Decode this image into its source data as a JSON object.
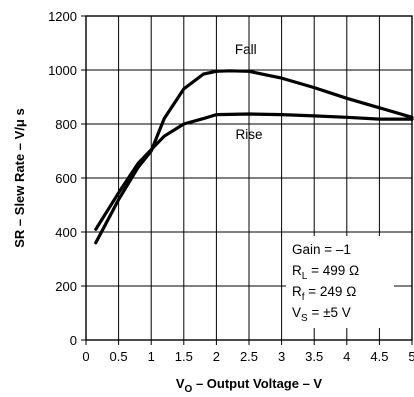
{
  "chart_data": {
    "type": "line",
    "xlabel": {
      "main": "V",
      "sub": "O",
      "rest": " – Output Voltage – V"
    },
    "ylabel": "SR – Slew Rate – V/μ s",
    "xlim": [
      0,
      5
    ],
    "ylim": [
      0,
      1200
    ],
    "x_ticks": [
      0,
      0.5,
      1,
      1.5,
      2,
      2.5,
      3,
      3.5,
      4,
      4.5,
      5
    ],
    "x_tick_labels": [
      "0",
      "0.5",
      "1",
      "1.5",
      "2",
      "2.5",
      "3",
      "3.5",
      "4",
      "4.5",
      "5"
    ],
    "y_ticks": [
      0,
      200,
      400,
      600,
      800,
      1000,
      1200
    ],
    "y_tick_labels": [
      "0",
      "200",
      "400",
      "600",
      "800",
      "1000",
      "1200"
    ],
    "grid": true,
    "series": [
      {
        "name": "Fall",
        "x": [
          0.15,
          0.5,
          0.8,
          1.0,
          1.2,
          1.5,
          1.8,
          2.0,
          2.2,
          2.5,
          2.8,
          3.0,
          3.5,
          4.0,
          4.5,
          5.0
        ],
        "y": [
          360,
          520,
          640,
          700,
          820,
          930,
          985,
          995,
          997,
          995,
          980,
          970,
          935,
          895,
          860,
          825
        ]
      },
      {
        "name": "Rise",
        "x": [
          0.15,
          0.5,
          0.8,
          1.0,
          1.2,
          1.5,
          1.8,
          2.0,
          2.5,
          3.0,
          3.5,
          4.0,
          4.5,
          5.0
        ],
        "y": [
          410,
          545,
          655,
          705,
          755,
          800,
          820,
          835,
          837,
          835,
          830,
          825,
          818,
          818
        ]
      }
    ],
    "annotations": [
      {
        "label": "Fall",
        "x": 2.45,
        "y": 1060
      },
      {
        "label": "Rise",
        "x": 2.5,
        "y": 745
      }
    ],
    "conditions": [
      {
        "main": "Gain = –1",
        "sub": "",
        "rest": ""
      },
      {
        "main": "R",
        "sub": "L",
        "rest": " = 499 Ω"
      },
      {
        "main": "R",
        "sub": "f",
        "rest": " = 249 Ω"
      },
      {
        "main": "V",
        "sub": "S",
        "rest": " = ±5 V"
      }
    ]
  }
}
